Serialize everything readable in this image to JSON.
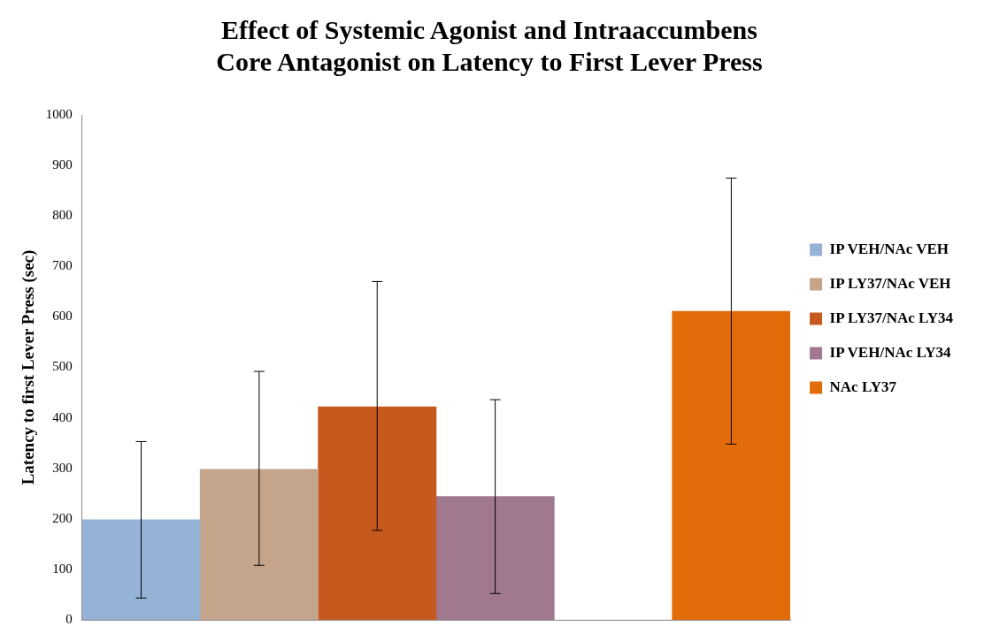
{
  "chart_data": {
    "type": "bar",
    "title": [
      "Effect of Systemic Agonist and Intraaccumbens",
      "Core Antagonist on Latency to First Lever Press"
    ],
    "ylabel": "Latency to first Lever Press (sec)",
    "categories": [
      null,
      null,
      null,
      null,
      null,
      null
    ],
    "stacked": true,
    "legend": "right",
    "grid": false,
    "ylim": [
      0,
      1000
    ],
    "yticks": [
      0,
      100,
      200,
      300,
      400,
      500,
      600,
      700,
      800,
      900,
      1000
    ],
    "series": [
      {
        "name": "IP VEH/NAc VEH",
        "color": "#95b3d7",
        "values": [
          198,
          null,
          null,
          null,
          null,
          null
        ],
        "errors": [
          [
            43,
            353
          ],
          null,
          null,
          null,
          null,
          null
        ]
      },
      {
        "name": "IP LY37/NAc VEH",
        "color": "#c4a48a",
        "values": [
          null,
          298,
          null,
          null,
          null,
          null
        ],
        "errors": [
          null,
          [
            108,
            492
          ],
          null,
          null,
          null,
          null
        ]
      },
      {
        "name": "IP LY37/NAc LY34",
        "color": "#c65a1e",
        "values": [
          null,
          null,
          422,
          null,
          null,
          null
        ],
        "errors": [
          null,
          null,
          [
            177,
            670
          ],
          null,
          null,
          null
        ]
      },
      {
        "name": "IP VEH/NAc LY34",
        "color": "#a07890",
        "values": [
          null,
          null,
          null,
          244,
          null,
          null
        ],
        "errors": [
          null,
          null,
          null,
          [
            52,
            436
          ],
          null,
          null
        ]
      },
      {
        "name": "NAc LY37",
        "color": "#e36c0a",
        "values": [
          null,
          null,
          null,
          null,
          null,
          611
        ],
        "errors": [
          null,
          null,
          null,
          null,
          null,
          [
            348,
            875
          ]
        ]
      }
    ]
  }
}
